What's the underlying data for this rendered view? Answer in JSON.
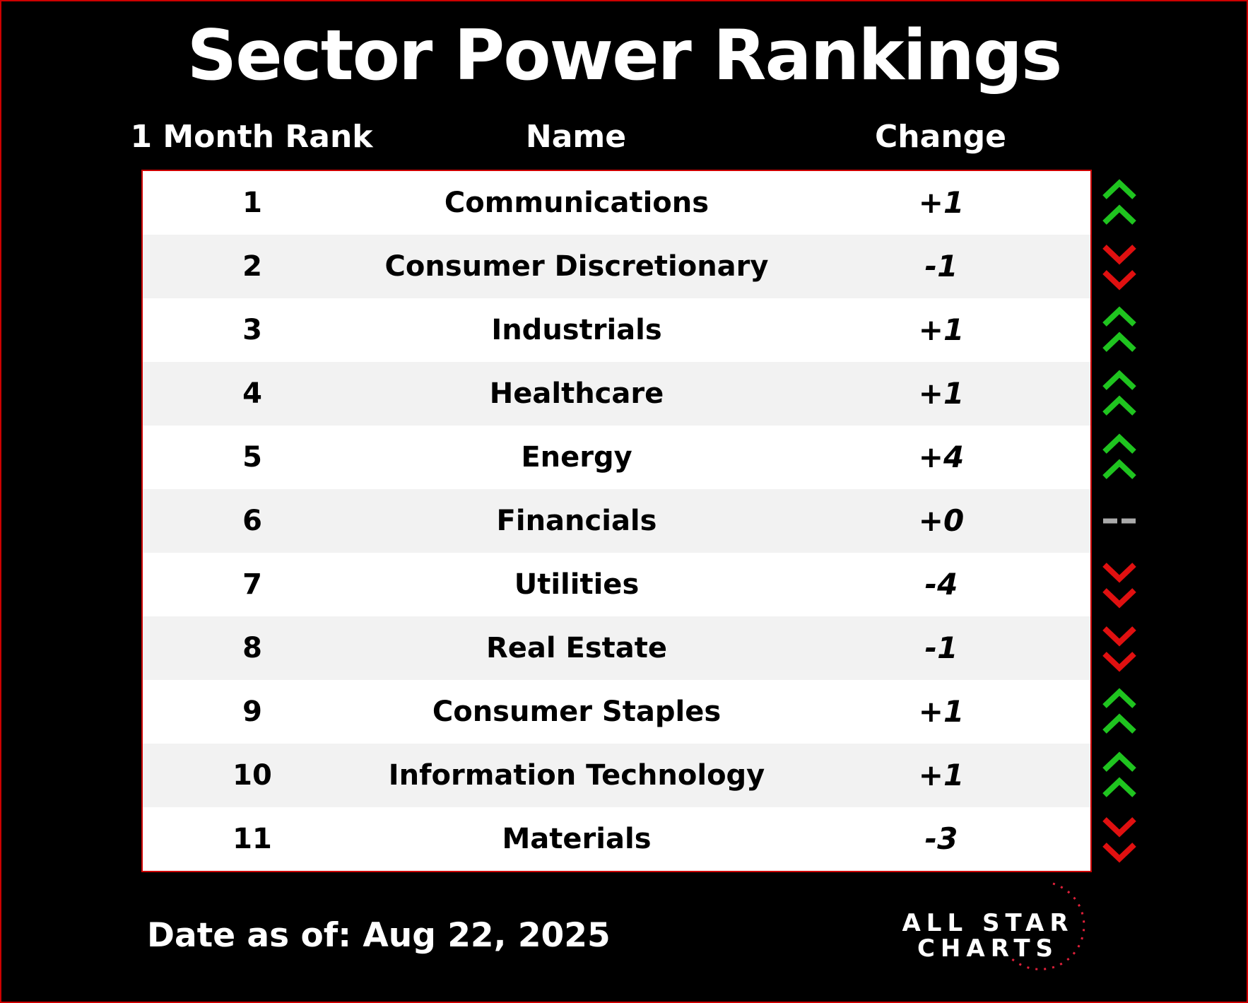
{
  "header": {
    "title": "Sector Power Rankings",
    "columns": [
      "1 Month Rank",
      "Name",
      "Change"
    ]
  },
  "table": {
    "rows": [
      [
        "1",
        "Communications",
        "+1"
      ],
      [
        "2",
        "Consumer Discretionary",
        "-1"
      ],
      [
        "3",
        "Industrials",
        "+1"
      ],
      [
        "4",
        "Healthcare",
        "+1"
      ],
      [
        "5",
        "Energy",
        "+4"
      ],
      [
        "6",
        "Financials",
        "+0"
      ],
      [
        "7",
        "Utilities",
        "-4"
      ],
      [
        "8",
        "Real Estate",
        "-1"
      ],
      [
        "9",
        "Consumer Staples",
        "+1"
      ],
      [
        "10",
        "Information Technology",
        "+1"
      ],
      [
        "11",
        "Materials",
        "-3"
      ]
    ]
  },
  "footer": {
    "date": "Date as of: Aug 22, 2025",
    "logo": [
      "ALL STAR",
      "CHARTS"
    ]
  }
}
